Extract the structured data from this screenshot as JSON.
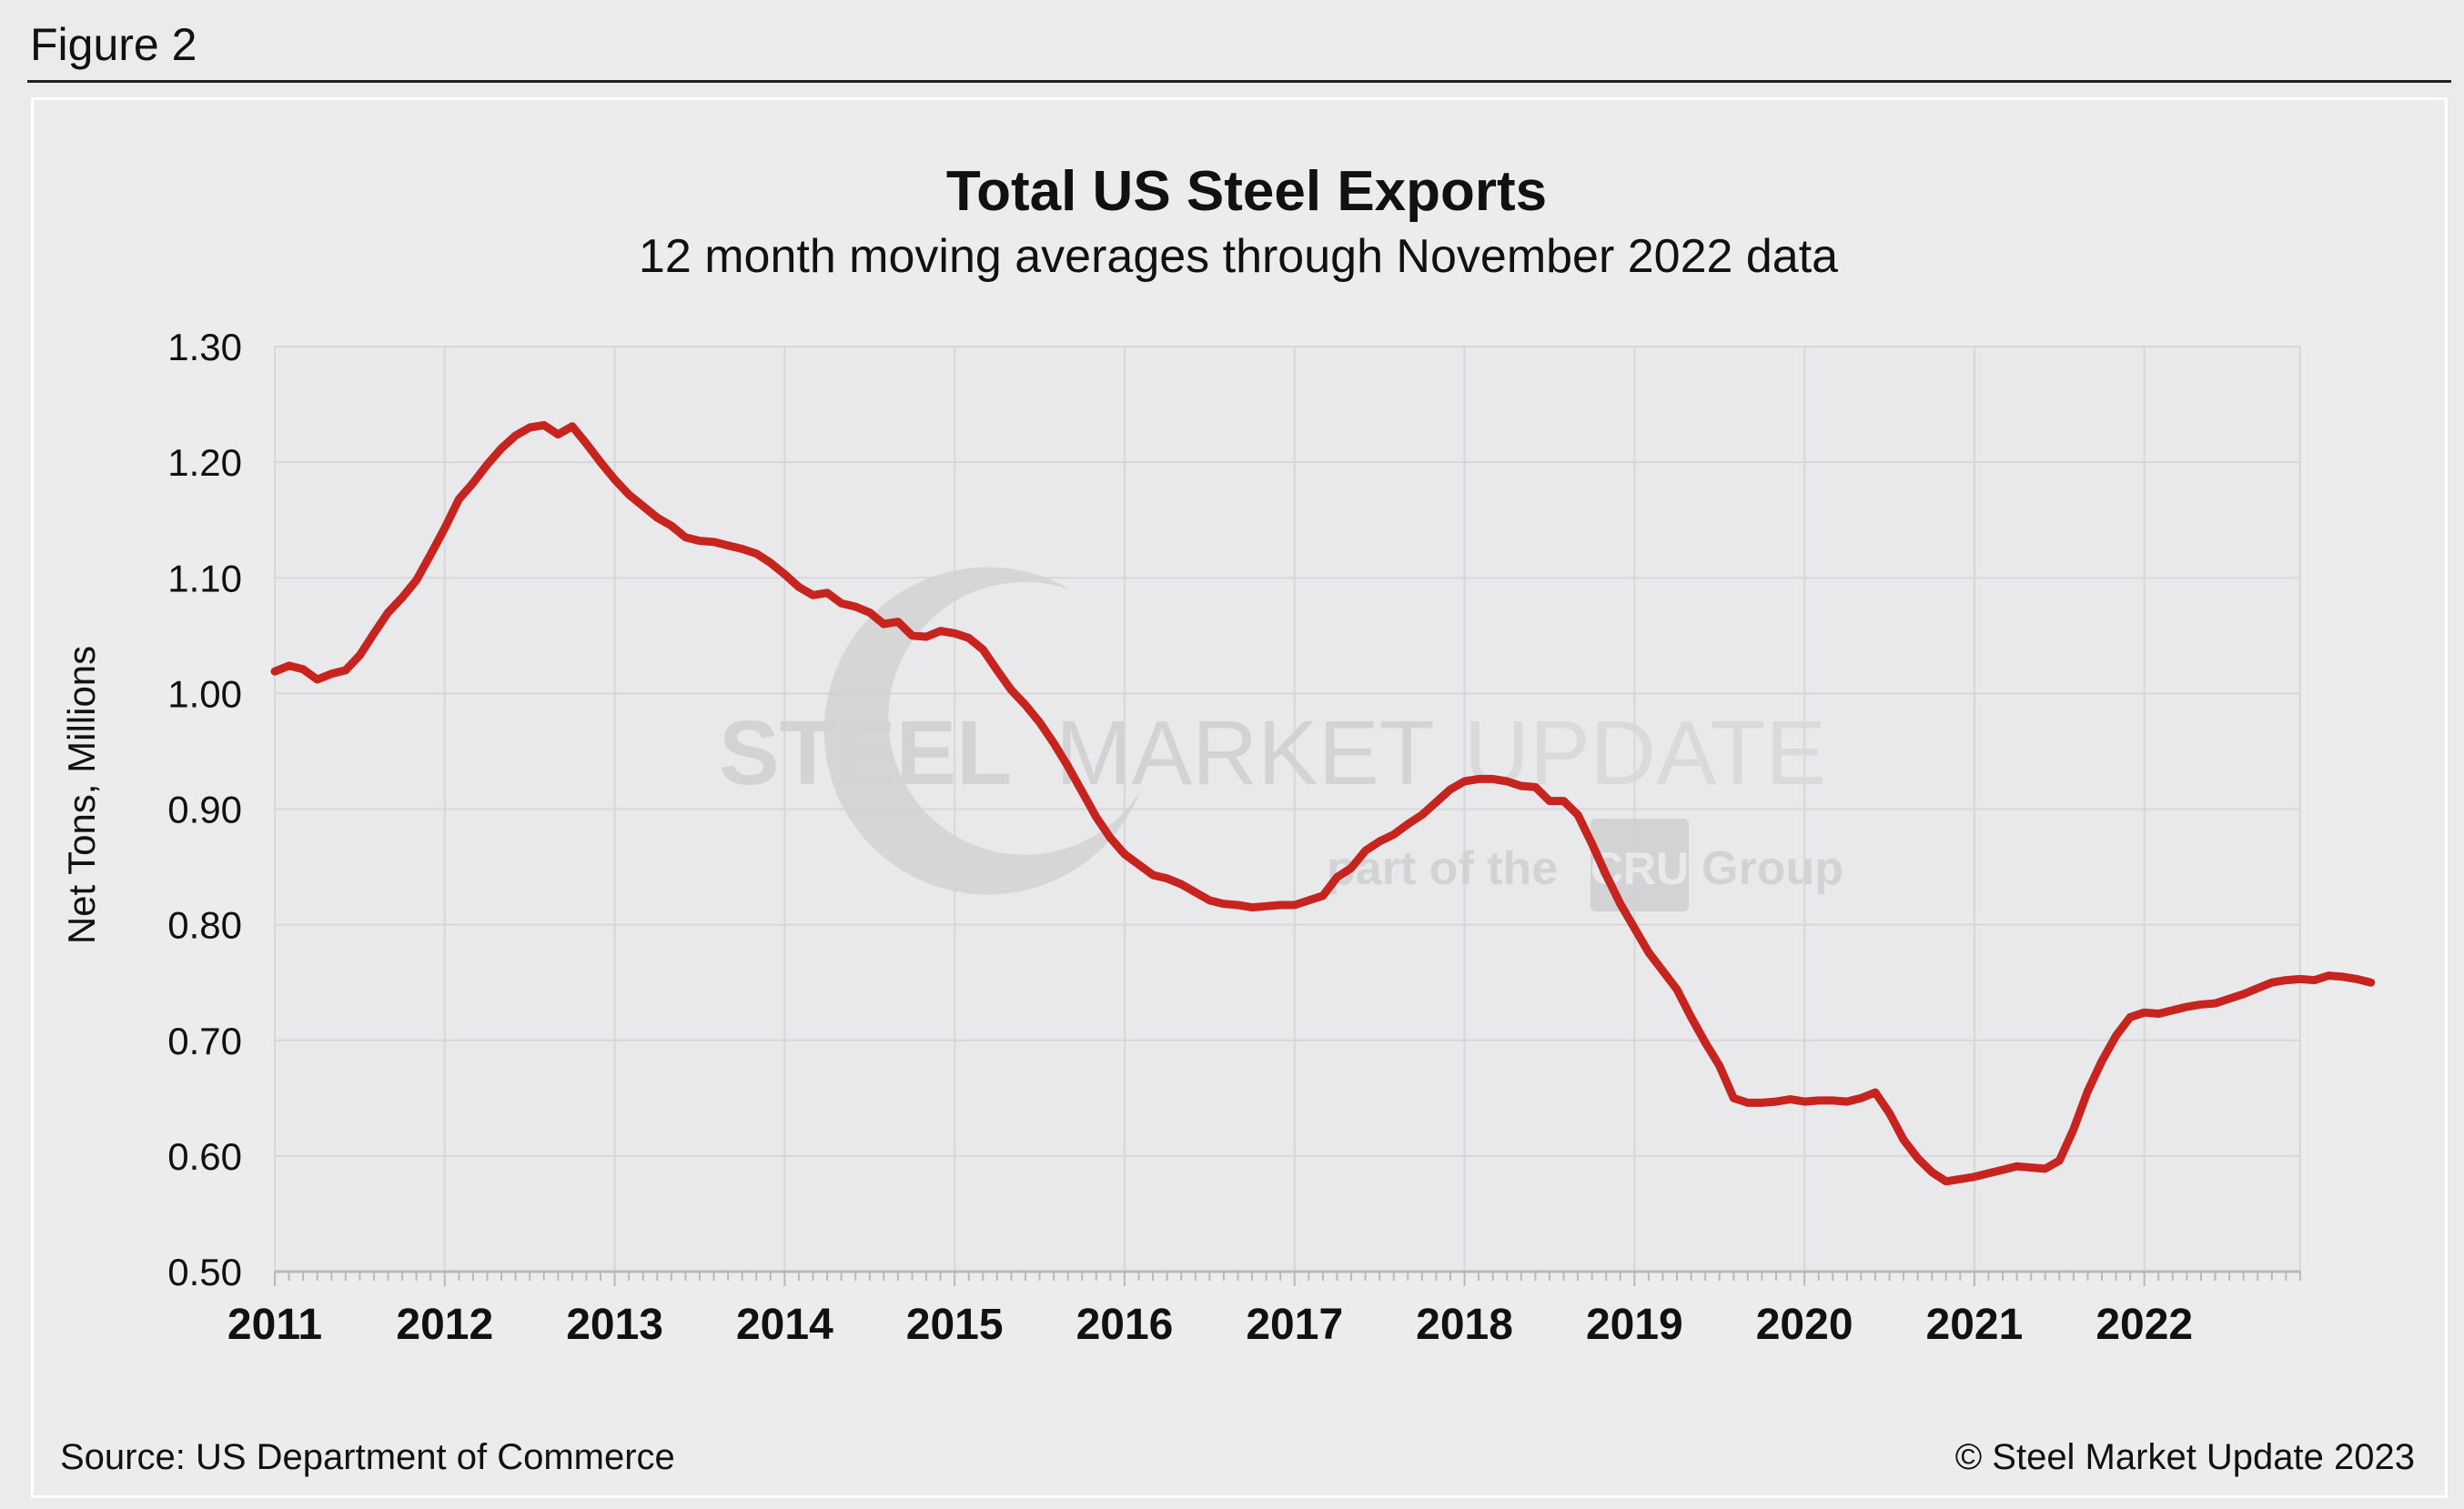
{
  "figure_label": "Figure 2",
  "source": "Source: US Department of Commerce",
  "copyright": "© Steel Market Update 2023",
  "watermark": {
    "brand_bold": "STEEL",
    "brand_mid": "MARKET",
    "brand_light": "UPDATE",
    "tagline_pre": "part of the",
    "tagline_logo": "CRU",
    "tagline_post": "Group"
  },
  "colors": {
    "line": "#c8241f",
    "plot_bg": "#e9e9ec",
    "grid": "#d7d7d9"
  },
  "chart_data": {
    "type": "line",
    "title": "Total US Steel Exports",
    "subtitle": "12 month moving averages through November 2022 data",
    "xlabel": "",
    "ylabel": "Net Tons, Millions",
    "xlim": [
      2011.0,
      2022.917
    ],
    "ylim": [
      0.5,
      1.3
    ],
    "y_ticks": [
      "0.50",
      "0.60",
      "0.70",
      "0.80",
      "0.90",
      "1.00",
      "1.10",
      "1.20",
      "1.30"
    ],
    "x_ticks": [
      "2011",
      "2012",
      "2013",
      "2014",
      "2015",
      "2016",
      "2017",
      "2018",
      "2019",
      "2020",
      "2021",
      "2022"
    ],
    "grid": true,
    "legend": "none",
    "series": [
      {
        "name": "Total US Steel Exports",
        "start": "2011-01",
        "end": "2022-11",
        "frequency": "monthly",
        "values": [
          1.019,
          1.024,
          1.021,
          1.012,
          1.017,
          1.02,
          1.033,
          1.052,
          1.07,
          1.083,
          1.098,
          1.12,
          1.143,
          1.168,
          1.182,
          1.198,
          1.212,
          1.223,
          1.23,
          1.232,
          1.224,
          1.231,
          1.216,
          1.2,
          1.185,
          1.172,
          1.162,
          1.152,
          1.145,
          1.135,
          1.132,
          1.131,
          1.128,
          1.125,
          1.121,
          1.113,
          1.103,
          1.092,
          1.085,
          1.087,
          1.078,
          1.075,
          1.07,
          1.06,
          1.062,
          1.05,
          1.049,
          1.054,
          1.052,
          1.048,
          1.038,
          1.02,
          1.003,
          0.99,
          0.975,
          0.957,
          0.937,
          0.915,
          0.893,
          0.875,
          0.861,
          0.852,
          0.843,
          0.84,
          0.835,
          0.828,
          0.821,
          0.818,
          0.817,
          0.815,
          0.816,
          0.817,
          0.817,
          0.821,
          0.825,
          0.841,
          0.849,
          0.864,
          0.872,
          0.878,
          0.887,
          0.895,
          0.906,
          0.917,
          0.924,
          0.926,
          0.926,
          0.924,
          0.92,
          0.919,
          0.907,
          0.907,
          0.895,
          0.87,
          0.843,
          0.818,
          0.797,
          0.776,
          0.76,
          0.744,
          0.72,
          0.698,
          0.678,
          0.65,
          0.646,
          0.646,
          0.647,
          0.649,
          0.647,
          0.648,
          0.648,
          0.647,
          0.65,
          0.655,
          0.637,
          0.614,
          0.598,
          0.586,
          0.578,
          0.58,
          0.582,
          0.585,
          0.588,
          0.591,
          0.59,
          0.589,
          0.596,
          0.623,
          0.656,
          0.682,
          0.704,
          0.72,
          0.724,
          0.723,
          0.726,
          0.729,
          0.731,
          0.732,
          0.736,
          0.74,
          0.745,
          0.75,
          0.752,
          0.753,
          0.752,
          0.756,
          0.755,
          0.753,
          0.75
        ]
      }
    ]
  }
}
